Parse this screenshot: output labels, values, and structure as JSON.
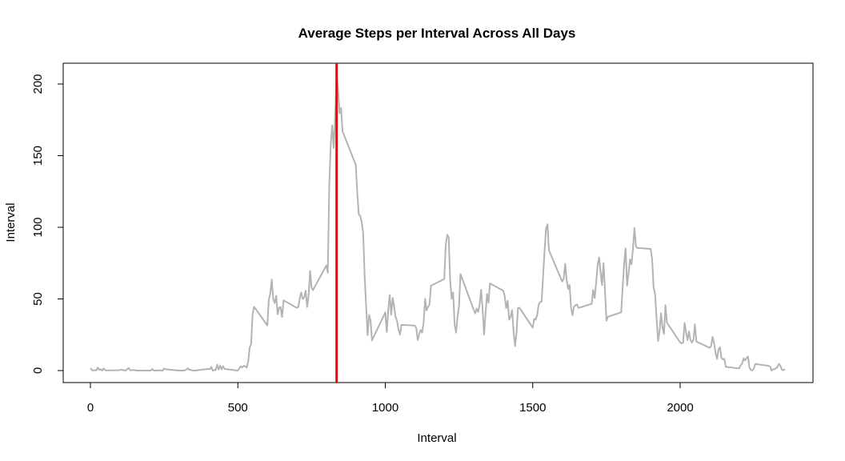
{
  "chart_data": {
    "type": "line",
    "title": "Average Steps per Interval Across All Days",
    "xlabel": "Interval",
    "ylabel": "Interval",
    "xlim": [
      0,
      2355
    ],
    "ylim": [
      0,
      206
    ],
    "x_ticks": [
      0,
      500,
      1000,
      1500,
      2000
    ],
    "y_ticks": [
      0,
      50,
      100,
      150,
      200
    ],
    "grid": false,
    "legend": "none",
    "series": [
      {
        "color": "#b3b3b3",
        "points": [
          [
            0,
            1.7
          ],
          [
            5,
            0.3
          ],
          [
            10,
            0.1
          ],
          [
            15,
            0.2
          ],
          [
            20,
            0.1
          ],
          [
            25,
            2.1
          ],
          [
            30,
            0.5
          ],
          [
            35,
            0.9
          ],
          [
            40,
            0
          ],
          [
            45,
            1.5
          ],
          [
            50,
            0.3
          ],
          [
            55,
            0.1
          ],
          [
            100,
            0.3
          ],
          [
            105,
            0.7
          ],
          [
            110,
            0.2
          ],
          [
            115,
            0.3
          ],
          [
            120,
            0
          ],
          [
            125,
            1.1
          ],
          [
            130,
            1.8
          ],
          [
            135,
            0.2
          ],
          [
            140,
            0.2
          ],
          [
            145,
            0.4
          ],
          [
            150,
            0.3
          ],
          [
            155,
            0
          ],
          [
            200,
            0
          ],
          [
            205,
            0
          ],
          [
            210,
            1.1
          ],
          [
            215,
            0
          ],
          [
            220,
            0
          ],
          [
            225,
            0.1
          ],
          [
            230,
            0
          ],
          [
            235,
            0.2
          ],
          [
            240,
            0
          ],
          [
            245,
            0
          ],
          [
            250,
            1.5
          ],
          [
            255,
            0.9
          ],
          [
            300,
            0
          ],
          [
            305,
            0
          ],
          [
            310,
            0
          ],
          [
            315,
            0
          ],
          [
            320,
            0.2
          ],
          [
            325,
            0.6
          ],
          [
            330,
            1.6
          ],
          [
            335,
            0.6
          ],
          [
            340,
            0.5
          ],
          [
            345,
            0.1
          ],
          [
            350,
            0
          ],
          [
            355,
            0
          ],
          [
            400,
            1.2
          ],
          [
            405,
            0.9
          ],
          [
            410,
            2.6
          ],
          [
            415,
            0
          ],
          [
            420,
            0.3
          ],
          [
            425,
            0.4
          ],
          [
            430,
            4.1
          ],
          [
            435,
            0.7
          ],
          [
            440,
            3.5
          ],
          [
            445,
            0.8
          ],
          [
            450,
            3.1
          ],
          [
            455,
            1.1
          ],
          [
            500,
            0
          ],
          [
            505,
            1.6
          ],
          [
            510,
            3.0
          ],
          [
            515,
            2.2
          ],
          [
            520,
            3.3
          ],
          [
            525,
            3.0
          ],
          [
            530,
            2.1
          ],
          [
            535,
            6.1
          ],
          [
            540,
            16.0
          ],
          [
            545,
            18.3
          ],
          [
            550,
            39.5
          ],
          [
            555,
            44.5
          ],
          [
            600,
            31.5
          ],
          [
            605,
            49.3
          ],
          [
            610,
            53.8
          ],
          [
            615,
            63.5
          ],
          [
            620,
            50.0
          ],
          [
            625,
            47.1
          ],
          [
            630,
            52.2
          ],
          [
            635,
            39.3
          ],
          [
            640,
            44.0
          ],
          [
            645,
            44.2
          ],
          [
            650,
            37.4
          ],
          [
            655,
            49.0
          ],
          [
            700,
            43.8
          ],
          [
            705,
            44.4
          ],
          [
            710,
            50.5
          ],
          [
            715,
            54.5
          ],
          [
            720,
            49.9
          ],
          [
            725,
            51.0
          ],
          [
            730,
            55.7
          ],
          [
            735,
            44.3
          ],
          [
            740,
            52.3
          ],
          [
            745,
            69.5
          ],
          [
            750,
            57.8
          ],
          [
            755,
            56.2
          ],
          [
            800,
            73.4
          ],
          [
            805,
            68.2
          ],
          [
            810,
            129.4
          ],
          [
            815,
            157.5
          ],
          [
            820,
            171.2
          ],
          [
            825,
            155.4
          ],
          [
            830,
            177.3
          ],
          [
            835,
            206.2
          ],
          [
            840,
            195.9
          ],
          [
            845,
            179.6
          ],
          [
            850,
            183.4
          ],
          [
            855,
            167.0
          ],
          [
            900,
            143.5
          ],
          [
            905,
            124.0
          ],
          [
            910,
            109.1
          ],
          [
            915,
            108.1
          ],
          [
            920,
            103.7
          ],
          [
            925,
            95.9
          ],
          [
            930,
            66.2
          ],
          [
            935,
            45.2
          ],
          [
            940,
            24.8
          ],
          [
            945,
            38.8
          ],
          [
            950,
            34.98
          ],
          [
            955,
            21.1
          ],
          [
            1000,
            40.6
          ],
          [
            1005,
            26.9
          ],
          [
            1010,
            42.4
          ],
          [
            1015,
            52.7
          ],
          [
            1020,
            38.9
          ],
          [
            1025,
            50.8
          ],
          [
            1030,
            44.3
          ],
          [
            1035,
            37.4
          ],
          [
            1040,
            34.7
          ],
          [
            1045,
            28.3
          ],
          [
            1050,
            25.1
          ],
          [
            1055,
            31.9
          ],
          [
            1100,
            31.4
          ],
          [
            1105,
            29.7
          ],
          [
            1110,
            21.3
          ],
          [
            1115,
            25.5
          ],
          [
            1120,
            28.4
          ],
          [
            1125,
            26.5
          ],
          [
            1130,
            33.4
          ],
          [
            1135,
            49.98
          ],
          [
            1140,
            42.0
          ],
          [
            1145,
            44.6
          ],
          [
            1150,
            46.0
          ],
          [
            1155,
            59.2
          ],
          [
            1200,
            63.9
          ],
          [
            1205,
            87.7
          ],
          [
            1210,
            94.8
          ],
          [
            1215,
            92.8
          ],
          [
            1220,
            63.4
          ],
          [
            1225,
            50.2
          ],
          [
            1230,
            54.5
          ],
          [
            1235,
            32.4
          ],
          [
            1240,
            26.5
          ],
          [
            1245,
            37.7
          ],
          [
            1250,
            45.1
          ],
          [
            1255,
            67.3
          ],
          [
            1300,
            42.3
          ],
          [
            1305,
            39.9
          ],
          [
            1310,
            43.3
          ],
          [
            1315,
            40.98
          ],
          [
            1320,
            46.2
          ],
          [
            1325,
            56.4
          ],
          [
            1330,
            42.8
          ],
          [
            1335,
            25.1
          ],
          [
            1340,
            39.98
          ],
          [
            1345,
            53.5
          ],
          [
            1350,
            47.3
          ],
          [
            1355,
            60.8
          ],
          [
            1400,
            55.8
          ],
          [
            1405,
            51.96
          ],
          [
            1410,
            43.6
          ],
          [
            1415,
            48.7
          ],
          [
            1420,
            35.5
          ],
          [
            1425,
            37.5
          ],
          [
            1430,
            42.1
          ],
          [
            1435,
            27.5
          ],
          [
            1440,
            17.1
          ],
          [
            1445,
            26.1
          ],
          [
            1450,
            43.6
          ],
          [
            1455,
            43.8
          ],
          [
            1500,
            30.0
          ],
          [
            1505,
            36.1
          ],
          [
            1510,
            35.5
          ],
          [
            1515,
            38.8
          ],
          [
            1520,
            45.96
          ],
          [
            1525,
            47.8
          ],
          [
            1530,
            48.1
          ],
          [
            1535,
            65.3
          ],
          [
            1540,
            82.9
          ],
          [
            1545,
            98.7
          ],
          [
            1550,
            102.1
          ],
          [
            1555,
            83.96
          ],
          [
            1600,
            62.1
          ],
          [
            1605,
            64.1
          ],
          [
            1610,
            74.5
          ],
          [
            1615,
            63.2
          ],
          [
            1620,
            56.9
          ],
          [
            1625,
            59.8
          ],
          [
            1630,
            43.9
          ],
          [
            1635,
            38.6
          ],
          [
            1640,
            44.7
          ],
          [
            1645,
            45.5
          ],
          [
            1650,
            46.2
          ],
          [
            1655,
            43.7
          ],
          [
            1700,
            46.6
          ],
          [
            1705,
            56.3
          ],
          [
            1710,
            50.7
          ],
          [
            1715,
            61.2
          ],
          [
            1720,
            73.4
          ],
          [
            1725,
            79.0
          ],
          [
            1730,
            68.9
          ],
          [
            1735,
            59.7
          ],
          [
            1740,
            75.1
          ],
          [
            1745,
            56.5
          ],
          [
            1750,
            34.8
          ],
          [
            1755,
            37.5
          ],
          [
            1800,
            40.7
          ],
          [
            1805,
            58.0
          ],
          [
            1810,
            74.7
          ],
          [
            1815,
            85.3
          ],
          [
            1820,
            59.3
          ],
          [
            1825,
            67.8
          ],
          [
            1830,
            77.7
          ],
          [
            1835,
            74.2
          ],
          [
            1840,
            85.3
          ],
          [
            1845,
            99.5
          ],
          [
            1850,
            86.6
          ],
          [
            1855,
            85.6
          ],
          [
            1900,
            84.9
          ],
          [
            1905,
            77.8
          ],
          [
            1910,
            58.0
          ],
          [
            1915,
            53.4
          ],
          [
            1920,
            36.3
          ],
          [
            1925,
            20.7
          ],
          [
            1930,
            27.4
          ],
          [
            1935,
            40.0
          ],
          [
            1940,
            30.2
          ],
          [
            1945,
            25.5
          ],
          [
            1950,
            45.7
          ],
          [
            1955,
            33.5
          ],
          [
            2000,
            19.6
          ],
          [
            2005,
            19.0
          ],
          [
            2010,
            19.3
          ],
          [
            2015,
            33.3
          ],
          [
            2020,
            26.8
          ],
          [
            2025,
            21.2
          ],
          [
            2030,
            27.3
          ],
          [
            2035,
            21.3
          ],
          [
            2040,
            19.6
          ],
          [
            2045,
            21.3
          ],
          [
            2050,
            32.3
          ],
          [
            2055,
            20.2
          ],
          [
            2100,
            15.9
          ],
          [
            2105,
            17.2
          ],
          [
            2110,
            23.5
          ],
          [
            2115,
            19.2
          ],
          [
            2120,
            12.5
          ],
          [
            2125,
            8.0
          ],
          [
            2130,
            14.7
          ],
          [
            2135,
            16.3
          ],
          [
            2140,
            8.7
          ],
          [
            2145,
            7.8
          ],
          [
            2150,
            8.1
          ],
          [
            2155,
            2.6
          ],
          [
            2200,
            1.5
          ],
          [
            2205,
            3.7
          ],
          [
            2210,
            4.8
          ],
          [
            2215,
            8.5
          ],
          [
            2220,
            7.1
          ],
          [
            2225,
            8.7
          ],
          [
            2230,
            9.8
          ],
          [
            2235,
            2.2
          ],
          [
            2240,
            0.3
          ],
          [
            2245,
            0.1
          ],
          [
            2250,
            1.6
          ],
          [
            2255,
            4.6
          ],
          [
            2300,
            3.3
          ],
          [
            2305,
            2.8
          ],
          [
            2310,
            0
          ],
          [
            2315,
            0.8
          ],
          [
            2320,
            0.96
          ],
          [
            2325,
            1.6
          ],
          [
            2330,
            2.6
          ],
          [
            2335,
            4.7
          ],
          [
            2340,
            3.3
          ],
          [
            2345,
            0.6
          ],
          [
            2350,
            0.2
          ],
          [
            2355,
            1.1
          ]
        ]
      }
    ],
    "vline": {
      "x": 835,
      "color": "#ff0000"
    }
  }
}
